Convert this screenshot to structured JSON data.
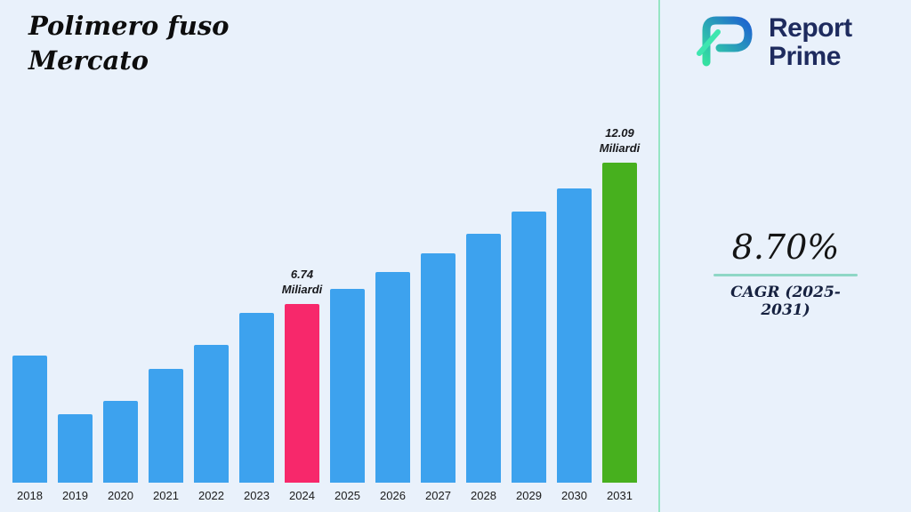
{
  "title": {
    "line1": "Polimero fuso",
    "line2": "Mercato"
  },
  "logo": {
    "line1": "Report",
    "line2": "Prime"
  },
  "stats": {
    "cagr_value": "8.70%",
    "cagr_label": "CAGR (2025-2031)"
  },
  "colors": {
    "background": "#e9f1fb",
    "bar_blue": "#3da2ee",
    "bar_pink": "#f7286b",
    "bar_green": "#47b01e",
    "divider_green": "#97e5c4",
    "underline_teal": "#8fd7c6",
    "logo_navy": "#1e2b5e"
  },
  "chart_data": {
    "type": "bar",
    "title": "Polimero fuso Mercato",
    "categories": [
      "2018",
      "2019",
      "2020",
      "2021",
      "2022",
      "2023",
      "2024",
      "2025",
      "2026",
      "2027",
      "2028",
      "2029",
      "2030",
      "2031"
    ],
    "values": [
      4.8,
      2.6,
      3.1,
      4.3,
      5.2,
      6.4,
      6.74,
      7.33,
      7.97,
      8.66,
      9.41,
      10.23,
      11.12,
      12.09
    ],
    "unit": "Miliardi",
    "xlabel": "",
    "ylabel": "",
    "ylim": [
      0,
      12.09
    ],
    "grid": false,
    "legend": false,
    "bar_color_default": "#3da2ee",
    "highlights": [
      {
        "index": 6,
        "color": "#f7286b",
        "label_lines": [
          "6.74",
          "Miliardi"
        ]
      },
      {
        "index": 13,
        "color": "#47b01e",
        "label_lines": [
          "12.09",
          "Miliardi"
        ]
      }
    ]
  }
}
